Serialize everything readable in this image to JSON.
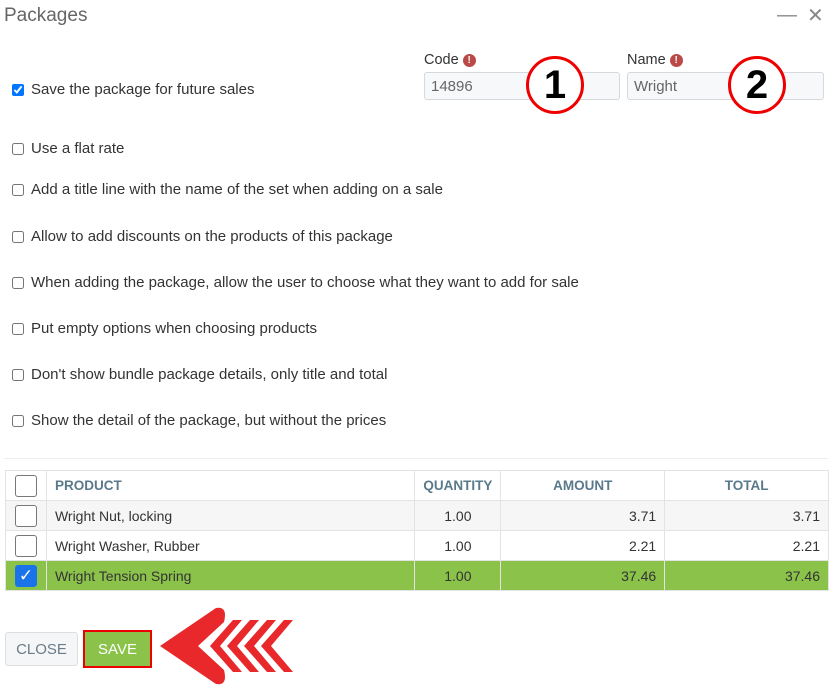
{
  "window": {
    "title": "Packages",
    "minimize_icon": "minimize-icon",
    "close_icon": "close-icon"
  },
  "options": [
    {
      "label": "Save the package for future sales",
      "checked": true
    },
    {
      "label": "Use a flat rate",
      "checked": false
    },
    {
      "label": "Add a title line with the name of the set when adding on a sale",
      "checked": false
    },
    {
      "label": "Allow to add discounts on the products of this package",
      "checked": false
    },
    {
      "label": "When adding the package, allow the user to choose what they want to add for sale",
      "checked": false
    },
    {
      "label": "Put empty options when choosing products",
      "checked": false
    },
    {
      "label": "Don't show bundle package details, only title and total",
      "checked": false
    },
    {
      "label": "Show the detail of the package, but without the prices",
      "checked": false
    }
  ],
  "code": {
    "label": "Code",
    "value": "14896"
  },
  "name": {
    "label": "Name",
    "value": "Wright"
  },
  "annotations": {
    "one": "1",
    "two": "2"
  },
  "table": {
    "headers": [
      "PRODUCT",
      "QUANTITY",
      "AMOUNT",
      "TOTAL"
    ],
    "rows": [
      {
        "product": "Wright Nut, locking",
        "quantity": "1.00",
        "amount": "3.71",
        "total": "3.71",
        "checked": false
      },
      {
        "product": "Wright Washer, Rubber",
        "quantity": "1.00",
        "amount": "2.21",
        "total": "2.21",
        "checked": false
      },
      {
        "product": "Wright Tension Spring",
        "quantity": "1.00",
        "amount": "37.46",
        "total": "37.46",
        "checked": true
      }
    ]
  },
  "buttons": {
    "close": "CLOSE",
    "save": "SAVE"
  },
  "colors": {
    "accent": "#8bc34a",
    "highlight": "#e00000",
    "checkbox": "#1a73e8"
  }
}
